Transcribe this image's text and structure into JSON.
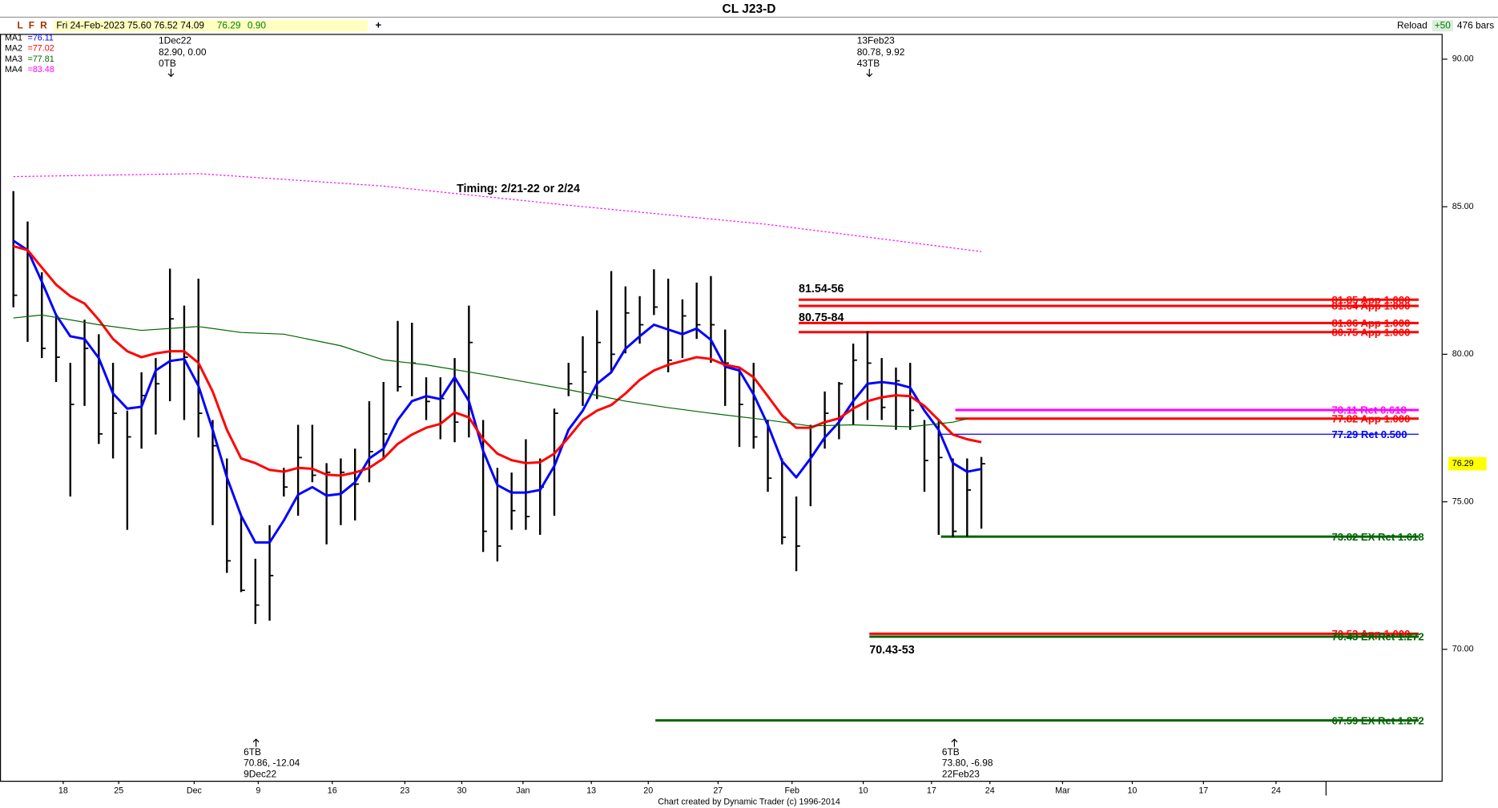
{
  "chart_data": {
    "type": "ohlc",
    "title": "CL J23-D",
    "header": {
      "flags": [
        "L",
        "F",
        "R"
      ],
      "info": "Fri 24-Feb-2023  75.60  76.52  74.09",
      "last": "76.29",
      "change": "0.90",
      "plus": "+",
      "reload": "Reload",
      "step": "+50",
      "bars": "476 bars"
    },
    "high": [
      85.53,
      84.5,
      82.78,
      81.33,
      79.71,
      81.17,
      80.68,
      79.71,
      78.09,
      79.39,
      79.87,
      82.9,
      81.65,
      82.56,
      77.77,
      76.47,
      74.53,
      73.07,
      74.21,
      76.15,
      77.61,
      77.61,
      76.31,
      76.47,
      76.8,
      78.41,
      79.06,
      81.13,
      81.07,
      79.22,
      79.22,
      79.87,
      81.65,
      77.77,
      76.15,
      75.99,
      77.12,
      76.47,
      78.16,
      79.71,
      80.61,
      81.49,
      82.82,
      82.3,
      81.97,
      82.88,
      82.56,
      81.86,
      82.43,
      82.65,
      80.84,
      79.55,
      79.71,
      77.77,
      76.47,
      75.18,
      77.61,
      78.74,
      79.06,
      80.36,
      80.78,
      79.87,
      79.55,
      79.71,
      77.77,
      77.77,
      76.47,
      76.47,
      76.52
    ],
    "low": [
      81.59,
      80.42,
      79.87,
      79.06,
      75.18,
      78.25,
      76.96,
      76.47,
      74.05,
      76.8,
      77.28,
      78.41,
      77.77,
      77.18,
      74.21,
      72.59,
      71.94,
      70.86,
      70.97,
      75.18,
      74.53,
      75.66,
      73.56,
      74.21,
      74.37,
      75.66,
      76.47,
      78.74,
      78.58,
      77.77,
      77.12,
      77.02,
      77.18,
      73.3,
      72.98,
      74.05,
      74.05,
      73.88,
      74.53,
      78.58,
      78.25,
      78.48,
      79.39,
      80.03,
      80.36,
      81.33,
      79.39,
      79.87,
      80.52,
      79.71,
      78.25,
      76.86,
      76.8,
      75.34,
      73.56,
      72.65,
      74.85,
      76.8,
      77.12,
      77.61,
      77.77,
      77.77,
      77.44,
      77.44,
      75.34,
      73.88,
      73.8,
      73.82,
      74.09
    ],
    "close": [
      82.0,
      83.4,
      80.2,
      79.9,
      78.3,
      80.2,
      77.3,
      78.0,
      77.2,
      78.6,
      79.0,
      81.2,
      79.9,
      78.0,
      76.9,
      73.0,
      72.0,
      71.5,
      72.5,
      75.5,
      76.5,
      75.9,
      76.0,
      76.0,
      75.6,
      76.7,
      77.3,
      78.9,
      79.7,
      78.4,
      78.5,
      77.7,
      80.4,
      74.0,
      73.5,
      74.7,
      74.5,
      75.5,
      78.0,
      79.0,
      79.4,
      80.4,
      80.0,
      81.4,
      81.0,
      81.6,
      79.8,
      81.3,
      81.0,
      81.0,
      79.7,
      78.3,
      77.2,
      75.8,
      73.8,
      73.5,
      76.6,
      78.0,
      79.0,
      79.8,
      79.7,
      78.2,
      79.1,
      78.1,
      76.4,
      76.5,
      74.0,
      75.4,
      76.29
    ],
    "series": [
      {
        "name": "MA1",
        "last_label": "=76.11",
        "color": "#0000ff",
        "width": 2.5,
        "values": [
          83.85,
          83.53,
          82.46,
          81.33,
          80.61,
          80.52,
          79.87,
          78.67,
          78.16,
          78.22,
          79.45,
          79.77,
          79.84,
          78.93,
          77.44,
          75.83,
          74.53,
          73.62,
          73.62,
          74.37,
          75.24,
          75.5,
          75.21,
          75.27,
          75.66,
          76.47,
          76.8,
          77.77,
          78.41,
          78.58,
          78.48,
          79.22,
          78.41,
          76.73,
          75.57,
          75.31,
          75.31,
          75.4,
          76.21,
          77.44,
          78.09,
          79.0,
          79.39,
          80.19,
          80.61,
          81.0,
          80.84,
          80.68,
          80.87,
          80.49,
          79.58,
          79.45,
          78.64,
          77.61,
          76.38,
          75.83,
          76.47,
          77.18,
          77.7,
          78.41,
          79.0,
          79.06,
          79.0,
          78.87,
          78.09,
          77.44,
          76.31,
          76.02,
          76.11
        ]
      },
      {
        "name": "MA2",
        "last_label": "=77.02",
        "color": "#ff0000",
        "width": 2.5,
        "values": [
          83.66,
          83.53,
          82.94,
          82.36,
          81.97,
          81.72,
          81.17,
          80.52,
          80.1,
          79.9,
          80.03,
          80.1,
          80.1,
          79.71,
          78.74,
          77.44,
          76.47,
          76.31,
          76.08,
          76.02,
          76.15,
          76.12,
          75.92,
          75.89,
          75.99,
          76.15,
          76.47,
          76.96,
          77.28,
          77.51,
          77.64,
          78.03,
          77.86,
          77.12,
          76.63,
          76.41,
          76.31,
          76.34,
          76.63,
          77.18,
          77.77,
          78.09,
          78.28,
          78.67,
          79.13,
          79.45,
          79.64,
          79.77,
          79.9,
          79.84,
          79.64,
          79.55,
          79.22,
          78.58,
          77.93,
          77.51,
          77.51,
          77.7,
          77.83,
          78.16,
          78.41,
          78.54,
          78.61,
          78.58,
          78.25,
          77.77,
          77.28,
          77.12,
          77.02
        ]
      },
      {
        "name": "MA3",
        "last_label": "=77.81",
        "color": "#006400",
        "width": 1,
        "x": [
          0,
          2,
          6,
          9,
          13,
          16,
          19,
          23,
          26,
          29,
          33,
          36,
          39,
          43,
          46,
          49,
          53,
          56,
          59,
          63,
          66,
          67
        ],
        "values": [
          81.23,
          81.33,
          81.0,
          80.81,
          80.94,
          80.74,
          80.68,
          80.29,
          79.81,
          79.64,
          79.32,
          79.06,
          78.8,
          78.41,
          78.19,
          78.0,
          77.77,
          77.57,
          77.61,
          77.54,
          77.7,
          77.81
        ]
      },
      {
        "name": "MA4",
        "last_label": "=83.48",
        "color": "#ff00ff",
        "width": 1,
        "dashed": true,
        "x": [
          0,
          13,
          26,
          39,
          53,
          68
        ],
        "values": [
          86.02,
          86.12,
          85.7,
          85.05,
          84.4,
          83.48
        ]
      }
    ],
    "bar_color": "#000000",
    "xlim": [
      -0.94,
      100.4
    ],
    "ylim": [
      65.53,
      90.84
    ],
    "yticks": [
      {
        "value": 90,
        "label": "90.00"
      },
      {
        "value": 85,
        "label": "85.00"
      },
      {
        "value": 80,
        "label": "80.00"
      },
      {
        "value": 75,
        "label": "75.00"
      },
      {
        "value": 70,
        "label": "70.00"
      }
    ],
    "xticks": [
      {
        "value": 3.5,
        "label": "18"
      },
      {
        "value": 7.4,
        "label": "25"
      },
      {
        "value": 12.7,
        "label": "Dec"
      },
      {
        "value": 17.2,
        "label": "9"
      },
      {
        "value": 22.4,
        "label": "16"
      },
      {
        "value": 27.5,
        "label": "23"
      },
      {
        "value": 31.5,
        "label": "30"
      },
      {
        "value": 35.8,
        "label": "Jan"
      },
      {
        "value": 40.6,
        "label": "13"
      },
      {
        "value": 44.6,
        "label": "20"
      },
      {
        "value": 49.5,
        "label": "27"
      },
      {
        "value": 54.7,
        "label": "Feb"
      },
      {
        "value": 59.7,
        "label": "10"
      },
      {
        "value": 64.5,
        "label": "17"
      },
      {
        "value": 68.6,
        "label": "24"
      },
      {
        "value": 73.7,
        "label": "Mar"
      },
      {
        "value": 78.6,
        "label": "10"
      },
      {
        "value": 83.6,
        "label": "17"
      },
      {
        "value": 88.7,
        "label": "24"
      }
    ],
    "last_price": 76.29,
    "levels": [
      {
        "value": 81.85,
        "label": "81.85 App 1.000",
        "color": "#ff0000"
      },
      {
        "value": 81.64,
        "label": "81.64 App 1.000",
        "color": "#ff0000"
      },
      {
        "value": 81.06,
        "label": "81.06 App 1.000",
        "color": "#ff0000"
      },
      {
        "value": 80.75,
        "label": "80.75 App 1.000",
        "color": "#ff0000"
      },
      {
        "value": 78.11,
        "label": "78.11 Ret 0.618",
        "color": "#ff00ff"
      },
      {
        "value": 77.82,
        "label": "77.82 App 1.000",
        "color": "#ff0000"
      },
      {
        "value": 77.29,
        "label": "77.29 Ret 0.500",
        "color": "#0000ff"
      },
      {
        "value": 73.82,
        "label": "73.82 EX Ret 1.618",
        "color": "#006400"
      },
      {
        "value": 70.53,
        "label": "70.53 App 1.000",
        "color": "#ff0000"
      },
      {
        "value": 70.43,
        "label": "70.43 EX Ret 1.272",
        "color": "#006400"
      },
      {
        "value": 67.59,
        "label": "67.59 EX Ret 1.272",
        "color": "#006400"
      }
    ],
    "zones": [
      "81.54-56",
      "80.75-84",
      "70.43-53"
    ],
    "timing": "Timing: 2/21-22  or 2/24",
    "pivots": [
      {
        "lines": [
          "1Dec22",
          "82.90, 0.00",
          "0TB"
        ]
      },
      {
        "lines": [
          "13Feb23",
          "80.78, 9.92",
          "43TB"
        ]
      },
      {
        "lines": [
          "6TB",
          "70.86, -12.04",
          "9Dec22"
        ]
      },
      {
        "lines": [
          "6TB",
          "73.80, -6.98",
          "22Feb23"
        ]
      }
    ],
    "footer": "Chart created by Dynamic Trader  (c) 1996-2014"
  }
}
